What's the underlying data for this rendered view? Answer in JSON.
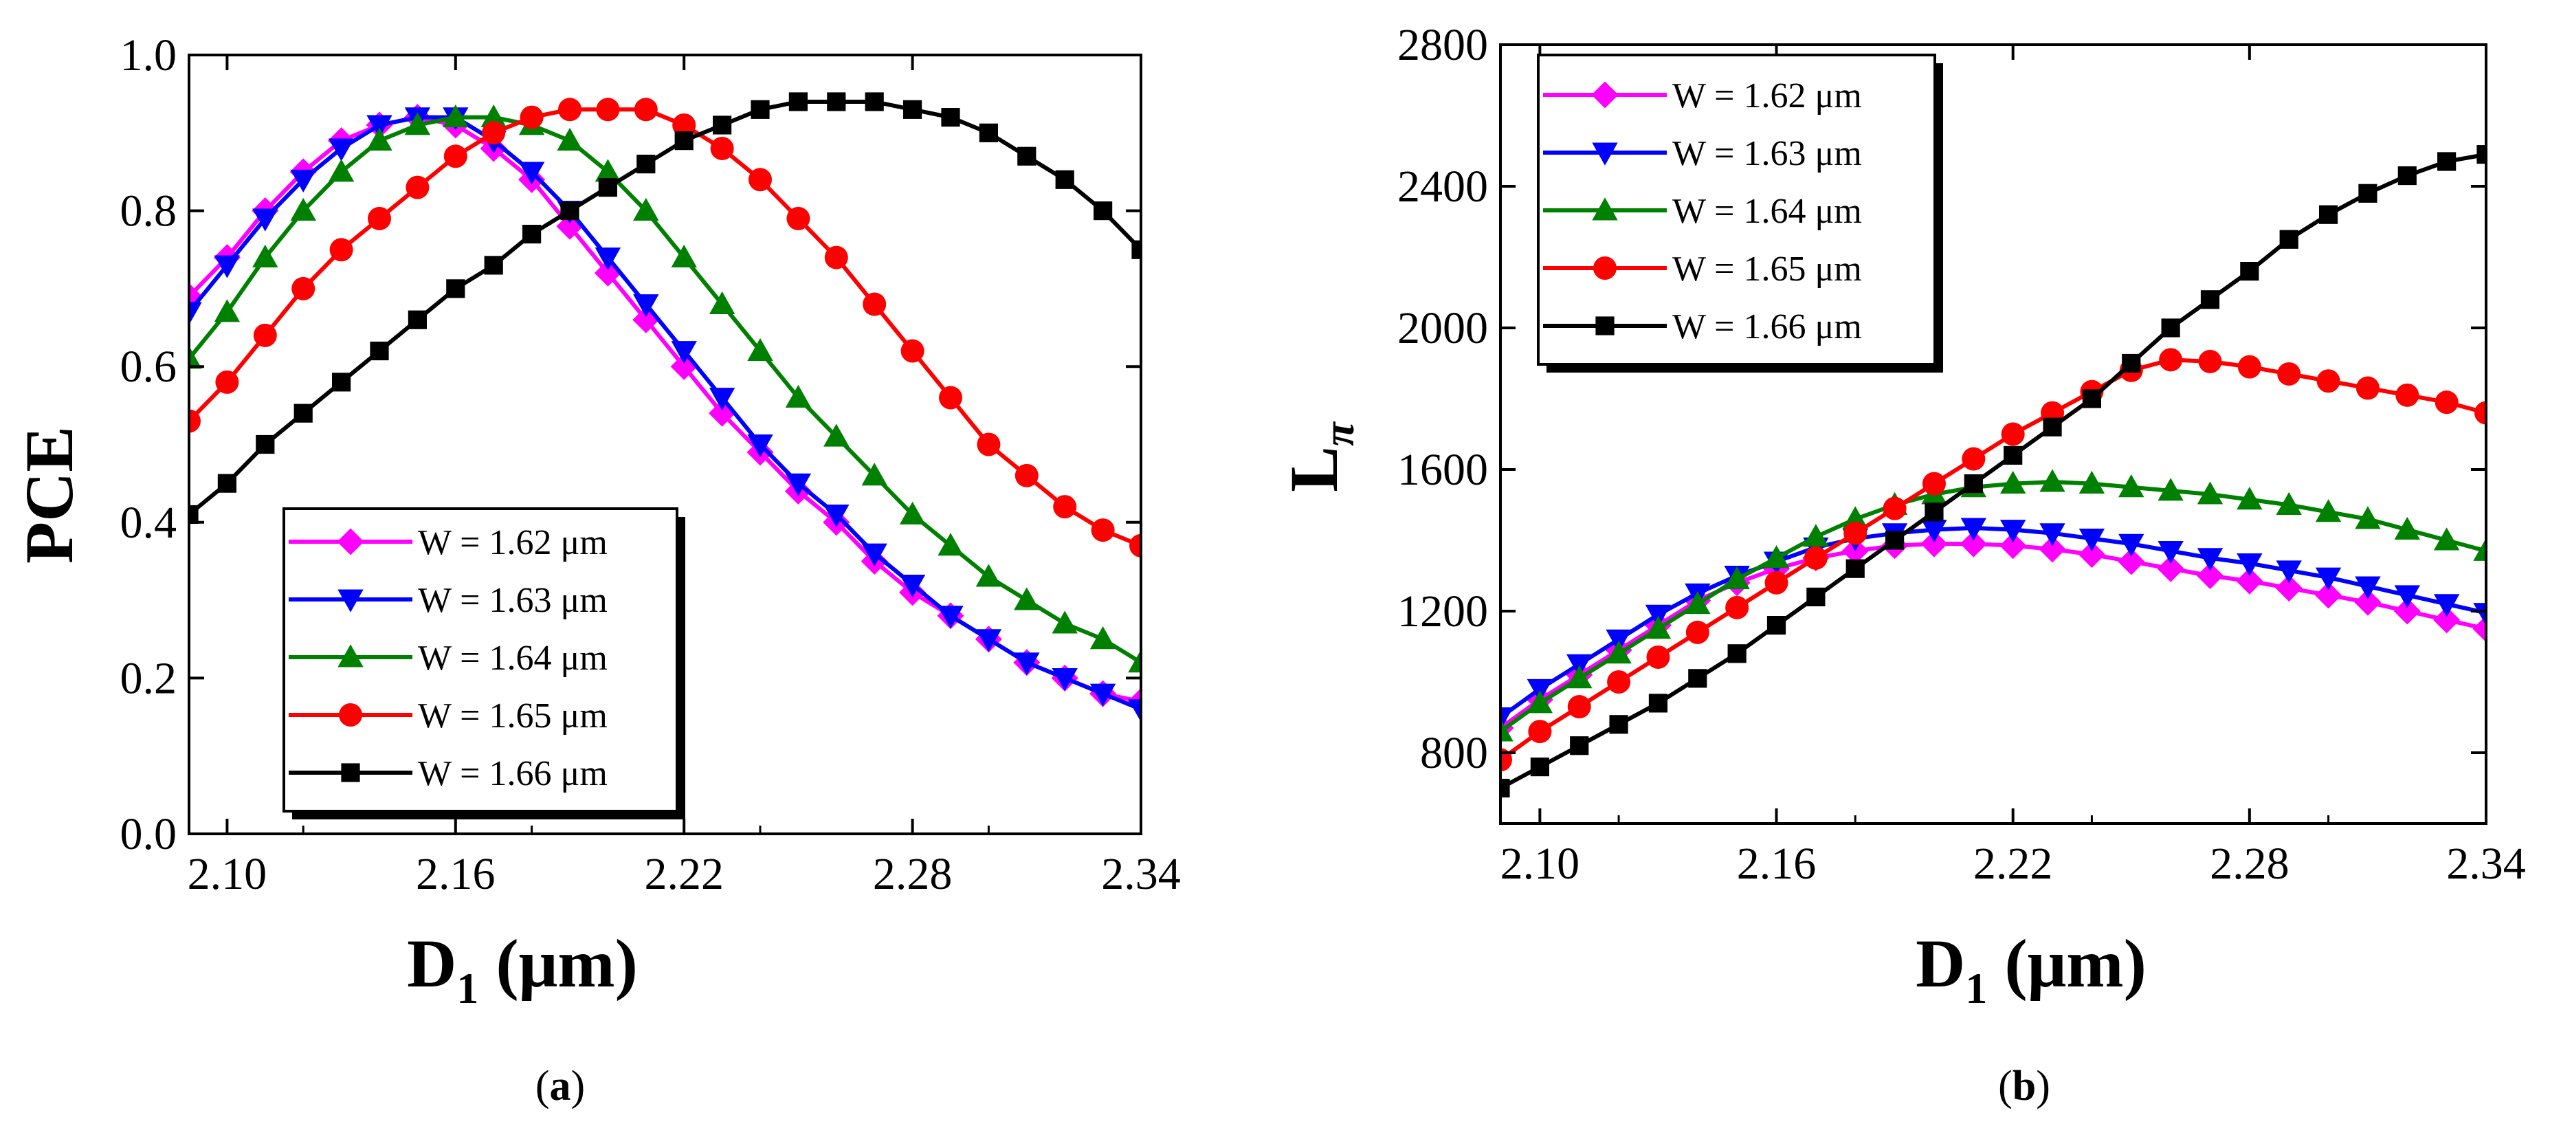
{
  "charts": [
    {
      "id": "a",
      "caption": {
        "open": "(",
        "letter": "a",
        "close": ")"
      },
      "ylabel": {
        "main": "PCE",
        "sub": ""
      },
      "xlabel": {
        "main": "D",
        "sub": "1",
        "unit": " (μm)"
      },
      "xlim": [
        2.09,
        2.34
      ],
      "ylim": [
        0.0,
        1.0
      ],
      "xticks": [
        "2.10",
        "2.16",
        "2.22",
        "2.28",
        "2.34"
      ],
      "yticks": [
        "0.0",
        "0.2",
        "0.4",
        "0.6",
        "0.8",
        "1.0"
      ],
      "legend_labels": [
        "W = 1.62 μm",
        "W = 1.63 μm",
        "W = 1.64 μm",
        "W = 1.65 μm",
        "W = 1.66 μm"
      ]
    },
    {
      "id": "b",
      "caption": {
        "open": "(",
        "letter": "b",
        "close": ")"
      },
      "ylabel": {
        "main": "L",
        "sub": "π"
      },
      "xlabel": {
        "main": "D",
        "sub": "1",
        "unit": " (μm)"
      },
      "xlim": [
        2.09,
        2.34
      ],
      "ylim": [
        600,
        2800
      ],
      "xticks": [
        "2.10",
        "2.16",
        "2.22",
        "2.28",
        "2.34"
      ],
      "yticks": [
        "800",
        "1200",
        "1600",
        "2000",
        "2400",
        "2800"
      ],
      "legend_labels": [
        "W = 1.62 μm",
        "W = 1.63 μm",
        "W = 1.64 μm",
        "W = 1.65 μm",
        "W = 1.66 μm"
      ]
    }
  ],
  "chart_data": [
    {
      "type": "line",
      "title": "(a)",
      "xlabel": "D1 (μm)",
      "ylabel": "PCE",
      "xlim": [
        2.09,
        2.34
      ],
      "ylim": [
        0.0,
        1.0
      ],
      "x": [
        2.09,
        2.1,
        2.11,
        2.12,
        2.13,
        2.14,
        2.15,
        2.16,
        2.17,
        2.18,
        2.19,
        2.2,
        2.21,
        2.22,
        2.23,
        2.24,
        2.25,
        2.26,
        2.27,
        2.28,
        2.29,
        2.3,
        2.31,
        2.32,
        2.33,
        2.34
      ],
      "series": [
        {
          "name": "W = 1.62 μm",
          "color": "#ff00ff",
          "marker": "diamond",
          "values": [
            0.69,
            0.74,
            0.8,
            0.85,
            0.89,
            0.91,
            0.92,
            0.91,
            0.88,
            0.84,
            0.78,
            0.72,
            0.66,
            0.6,
            0.54,
            0.49,
            0.44,
            0.4,
            0.35,
            0.31,
            0.28,
            0.25,
            0.22,
            0.2,
            0.18,
            0.17
          ]
        },
        {
          "name": "W = 1.63 μm",
          "color": "#0000ff",
          "marker": "triangle-down",
          "values": [
            0.67,
            0.73,
            0.79,
            0.84,
            0.88,
            0.91,
            0.92,
            0.92,
            0.89,
            0.85,
            0.8,
            0.74,
            0.68,
            0.62,
            0.56,
            0.5,
            0.45,
            0.41,
            0.36,
            0.32,
            0.28,
            0.25,
            0.22,
            0.2,
            0.18,
            0.16
          ]
        },
        {
          "name": "W = 1.64 μm",
          "color": "#008000",
          "marker": "triangle-up",
          "values": [
            0.61,
            0.67,
            0.74,
            0.8,
            0.85,
            0.89,
            0.91,
            0.92,
            0.92,
            0.91,
            0.89,
            0.85,
            0.8,
            0.74,
            0.68,
            0.62,
            0.56,
            0.51,
            0.46,
            0.41,
            0.37,
            0.33,
            0.3,
            0.27,
            0.25,
            0.22
          ]
        },
        {
          "name": "W = 1.65 μm",
          "color": "#ff0000",
          "marker": "circle",
          "values": [
            0.53,
            0.58,
            0.64,
            0.7,
            0.75,
            0.79,
            0.83,
            0.87,
            0.9,
            0.92,
            0.93,
            0.93,
            0.93,
            0.91,
            0.88,
            0.84,
            0.79,
            0.74,
            0.68,
            0.62,
            0.56,
            0.5,
            0.46,
            0.42,
            0.39,
            0.37
          ]
        },
        {
          "name": "W = 1.66 μm",
          "color": "#000000",
          "marker": "square",
          "values": [
            0.41,
            0.45,
            0.5,
            0.54,
            0.58,
            0.62,
            0.66,
            0.7,
            0.73,
            0.77,
            0.8,
            0.83,
            0.86,
            0.89,
            0.91,
            0.93,
            0.94,
            0.94,
            0.94,
            0.93,
            0.92,
            0.9,
            0.87,
            0.84,
            0.8,
            0.75
          ]
        }
      ]
    },
    {
      "type": "line",
      "title": "(b)",
      "xlabel": "D1 (μm)",
      "ylabel": "Lπ",
      "xlim": [
        2.09,
        2.34
      ],
      "ylim": [
        600,
        2800
      ],
      "x": [
        2.09,
        2.1,
        2.11,
        2.12,
        2.13,
        2.14,
        2.15,
        2.16,
        2.17,
        2.18,
        2.19,
        2.2,
        2.21,
        2.22,
        2.23,
        2.24,
        2.25,
        2.26,
        2.27,
        2.28,
        2.29,
        2.3,
        2.31,
        2.32,
        2.33,
        2.34
      ],
      "series": [
        {
          "name": "W = 1.62 μm",
          "color": "#ff00ff",
          "marker": "diamond",
          "values": [
            870,
            950,
            1020,
            1090,
            1160,
            1230,
            1280,
            1320,
            1350,
            1370,
            1385,
            1390,
            1390,
            1385,
            1375,
            1360,
            1340,
            1320,
            1300,
            1285,
            1265,
            1245,
            1225,
            1200,
            1175,
            1150
          ]
        },
        {
          "name": "W = 1.63 μm",
          "color": "#0000ff",
          "marker": "triangle-down",
          "values": [
            900,
            980,
            1050,
            1120,
            1190,
            1250,
            1300,
            1340,
            1380,
            1405,
            1420,
            1430,
            1435,
            1430,
            1420,
            1405,
            1390,
            1370,
            1350,
            1335,
            1315,
            1295,
            1270,
            1245,
            1220,
            1195
          ]
        },
        {
          "name": "W = 1.64 μm",
          "color": "#008000",
          "marker": "triangle-up",
          "values": [
            860,
            940,
            1010,
            1080,
            1150,
            1220,
            1290,
            1350,
            1410,
            1460,
            1500,
            1530,
            1550,
            1560,
            1565,
            1560,
            1550,
            1540,
            1530,
            1515,
            1500,
            1480,
            1460,
            1430,
            1400,
            1370
          ]
        },
        {
          "name": "W = 1.65 μm",
          "color": "#ff0000",
          "marker": "circle",
          "values": [
            780,
            860,
            930,
            1000,
            1070,
            1140,
            1210,
            1280,
            1350,
            1420,
            1490,
            1560,
            1630,
            1700,
            1760,
            1820,
            1880,
            1910,
            1905,
            1890,
            1870,
            1850,
            1830,
            1810,
            1790,
            1760
          ]
        },
        {
          "name": "W = 1.66 μm",
          "color": "#000000",
          "marker": "square",
          "values": [
            700,
            760,
            820,
            880,
            940,
            1010,
            1080,
            1160,
            1240,
            1320,
            1400,
            1480,
            1560,
            1640,
            1720,
            1800,
            1900,
            2000,
            2080,
            2160,
            2250,
            2320,
            2380,
            2430,
            2470,
            2490
          ]
        }
      ]
    }
  ]
}
